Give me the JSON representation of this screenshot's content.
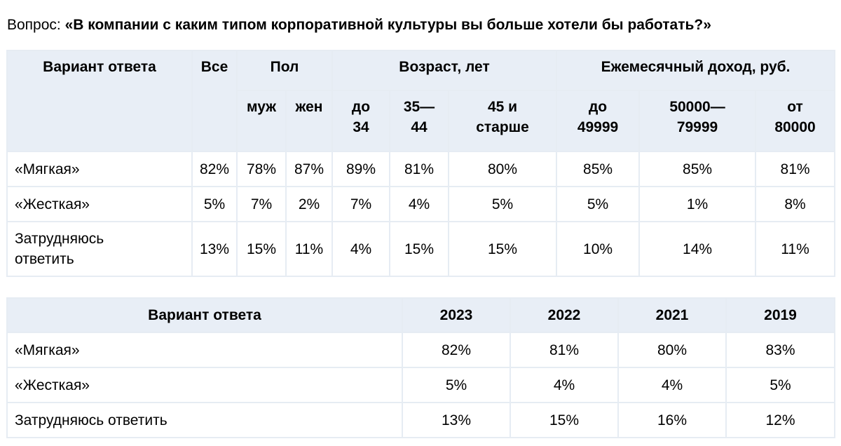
{
  "question": {
    "prefix": "Вопрос: ",
    "text": "«В компании с каким типом корпоративной культуры вы больше хотели бы работать?»"
  },
  "table1": {
    "h_variant": "Вариант ответа",
    "h_all": "Все",
    "h_sex": "Пол",
    "h_age": "Возраст, лет",
    "h_income": "Ежемесячный доход, руб.",
    "sub": {
      "male": "муж",
      "female": "жен",
      "age1_a": "до",
      "age1_b": "34",
      "age2_a": "35—",
      "age2_b": "44",
      "age3_a": "45 и",
      "age3_b": "старше",
      "inc1_a": "до",
      "inc1_b": "49999",
      "inc2_a": "50000—",
      "inc2_b": "79999",
      "inc3_a": "от",
      "inc3_b": "80000"
    },
    "rows": [
      {
        "label": "«Мягкая»",
        "v": [
          "82%",
          "78%",
          "87%",
          "89%",
          "81%",
          "80%",
          "85%",
          "85%",
          "81%"
        ]
      },
      {
        "label": "«Жесткая»",
        "v": [
          "5%",
          "7%",
          "2%",
          "7%",
          "4%",
          "5%",
          "5%",
          "1%",
          "8%"
        ]
      },
      {
        "label_a": "Затрудняюсь",
        "label_b": "ответить",
        "v": [
          "13%",
          "15%",
          "11%",
          "4%",
          "15%",
          "15%",
          "10%",
          "14%",
          "11%"
        ]
      }
    ]
  },
  "table2": {
    "headers": [
      "Вариант ответа",
      "2023",
      "2022",
      "2021",
      "2019"
    ],
    "rows": [
      {
        "label": "«Мягкая»",
        "v": [
          "82%",
          "81%",
          "80%",
          "83%"
        ]
      },
      {
        "label": "«Жесткая»",
        "v": [
          "5%",
          "4%",
          "4%",
          "5%"
        ]
      },
      {
        "label": "Затрудняюсь ответить",
        "v": [
          "13%",
          "15%",
          "16%",
          "12%"
        ]
      }
    ]
  }
}
